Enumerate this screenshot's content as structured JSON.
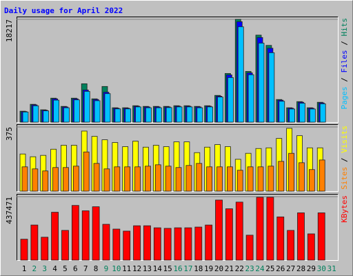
{
  "chart_data": [
    {
      "type": "bar",
      "title": "Daily usage for April 2022",
      "series": [
        {
          "name": "Hits",
          "color": "#00805c",
          "values": [
            1940,
            3160,
            2190,
            4250,
            2790,
            4250,
            6800,
            4130,
            6320,
            2550,
            2550,
            2910,
            2790,
            2790,
            2790,
            2910,
            2910,
            2790,
            2910,
            4740,
            8620,
            18217,
            8990,
            15420,
            13600,
            4010,
            2550,
            3640,
            2550,
            3520,
            null
          ]
        },
        {
          "name": "Files",
          "color": "#0000ff",
          "values": [
            1880,
            3060,
            2120,
            4130,
            2700,
            4130,
            5700,
            4010,
            5300,
            2470,
            2470,
            2820,
            2700,
            2700,
            2700,
            2820,
            2820,
            2700,
            2820,
            4600,
            8370,
            17800,
            8730,
            15000,
            13100,
            3890,
            2470,
            3530,
            2470,
            3410,
            null
          ]
        },
        {
          "name": "Pages",
          "color": "#00c0ff",
          "values": [
            1800,
            2900,
            2000,
            3900,
            2550,
            3950,
            5450,
            3800,
            5050,
            2350,
            2350,
            2700,
            2550,
            2550,
            2580,
            2700,
            2700,
            2550,
            2700,
            4450,
            7900,
            16900,
            8400,
            14000,
            12300,
            3700,
            2330,
            3350,
            2330,
            3250,
            null
          ]
        }
      ],
      "ylim": [
        0,
        18217
      ],
      "yticks": [
        18217
      ]
    },
    {
      "type": "bar",
      "series": [
        {
          "name": "Visits",
          "color": "#ffff00",
          "values": [
            217,
            201,
            209,
            245,
            268,
            268,
            351,
            320,
            300,
            284,
            260,
            292,
            257,
            268,
            260,
            288,
            288,
            225,
            257,
            272,
            260,
            186,
            221,
            249,
            253,
            308,
            367,
            324,
            253,
            253,
            null
          ]
        },
        {
          "name": "Sites",
          "color": "#ff8000",
          "values": [
            142,
            130,
            118,
            138,
            138,
            146,
            229,
            162,
            130,
            142,
            142,
            142,
            146,
            154,
            146,
            138,
            150,
            162,
            142,
            142,
            142,
            122,
            142,
            142,
            146,
            174,
            221,
            166,
            126,
            182,
            null
          ]
        }
      ],
      "ylim": [
        0,
        375
      ],
      "yticks": [
        375
      ]
    },
    {
      "type": "bar",
      "series": [
        {
          "name": "KBytes",
          "color": "#ff0000",
          "values": [
            144270,
            242000,
            158000,
            330000,
            205000,
            377000,
            340000,
            368000,
            247000,
            214000,
            200000,
            237000,
            237000,
            223000,
            219000,
            223000,
            223000,
            228000,
            242000,
            414000,
            354000,
            400000,
            172000,
            433000,
            433000,
            298000,
            205000,
            326000,
            181000,
            326000,
            null
          ]
        }
      ],
      "ylim": [
        0,
        437471
      ],
      "yticks": [
        437471
      ],
      "categories": [
        "1",
        "2",
        "3",
        "4",
        "5",
        "6",
        "7",
        "8",
        "9",
        "10",
        "11",
        "12",
        "13",
        "14",
        "15",
        "16",
        "17",
        "18",
        "19",
        "20",
        "21",
        "22",
        "23",
        "24",
        "25",
        "26",
        "27",
        "28",
        "29",
        "30",
        "31"
      ],
      "highlight_categories": [
        "2",
        "3",
        "9",
        "10",
        "16",
        "17",
        "23",
        "24",
        "30",
        "31"
      ],
      "highlight_color": "#00805c"
    }
  ]
}
